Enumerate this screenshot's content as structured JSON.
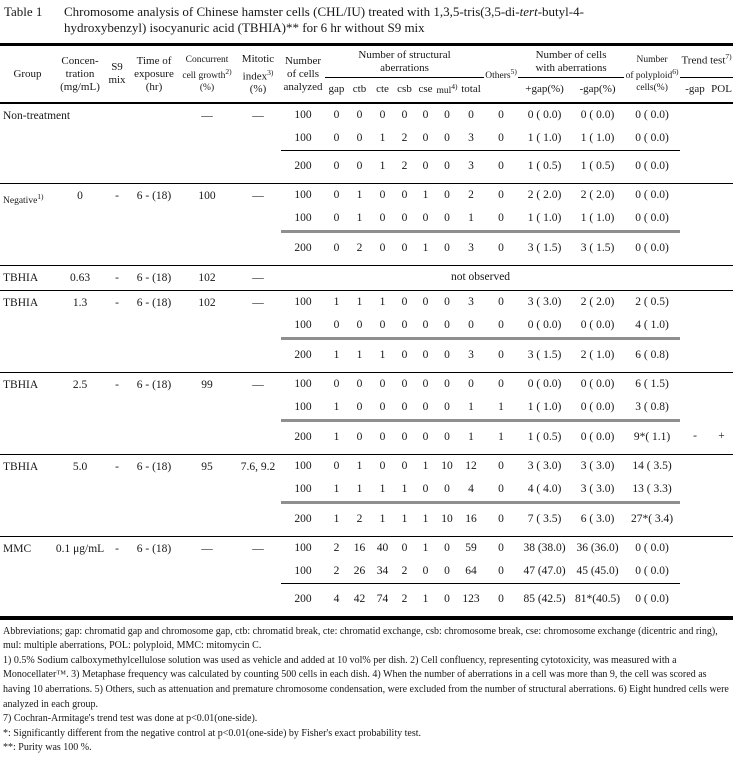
{
  "title": {
    "label": "Table 1",
    "line1_pre": "Chromosome analysis of Chinese hamster cells (CHL/IU) treated with 1,3,5-tris(3,5-di-",
    "line1_italic": "tert",
    "line1_post": "-butyl-4-",
    "line2": "hydroxybenzyl) isocyanuric acid (TBHIA)** for 6 hr without S9 mix"
  },
  "header": {
    "group": "Group",
    "concentration": {
      "l1": "Concen-",
      "l2": "tration",
      "l3": "(mg/mL)"
    },
    "s9": {
      "l1": "S9",
      "l2": "mix"
    },
    "time": {
      "l1": "Time of",
      "l2": "exposure",
      "l3": "(hr)"
    },
    "growth": {
      "l1": "Concurrent",
      "l2": "cell growth",
      "sup": "2)",
      "l3": "(%)"
    },
    "mitotic": {
      "l1": "Mitotic",
      "l2": "index",
      "sup": "3)",
      "l3": "(%)"
    },
    "analyzed": {
      "l1": "Number",
      "l2": "of cells",
      "l3": "analyzed"
    },
    "structural": {
      "l1": "Number of structural",
      "l2": "aberrations"
    },
    "sub": {
      "gap": "gap",
      "ctb": "ctb",
      "cte": "cte",
      "csb": "csb",
      "cse": "cse",
      "mul": "mul",
      "mul_sup": "4)",
      "total": "total"
    },
    "others": {
      "label": "Others",
      "sup": "5)"
    },
    "with_aberrations": {
      "l1": "Number of cells",
      "l2": "with aberrations",
      "plus": "+gap(%)",
      "minus": "-gap(%)"
    },
    "polyploid": {
      "l1": "Number",
      "l2": "of polyploid",
      "sup": "6)",
      "l3": "cells(%)"
    },
    "trend": {
      "label": "Trend test",
      "sup": "7)",
      "sub1": "-gap",
      "sub2": "POL"
    }
  },
  "table": {
    "groups": [
      {
        "name": "Non-treatment",
        "name_sup": "",
        "concentration": "",
        "s9": "",
        "time": "",
        "growth": "—",
        "mitotic": "—",
        "rows": [
          {
            "analyzed": "100",
            "gap": "0",
            "ctb": "0",
            "cte": "0",
            "csb": "0",
            "cse": "0",
            "mul": "0",
            "total": "0",
            "others": "0",
            "plus_gap": "0 ( 0.0)",
            "minus_gap": "0 ( 0.0)",
            "polyploid": "0 ( 0.0)"
          },
          {
            "analyzed": "100",
            "gap": "0",
            "ctb": "0",
            "cte": "1",
            "csb": "2",
            "cse": "0",
            "mul": "0",
            "total": "3",
            "others": "0",
            "plus_gap": "1 ( 1.0)",
            "minus_gap": "1 ( 1.0)",
            "polyploid": "0 ( 0.0)"
          }
        ],
        "subtotal": {
          "analyzed": "200",
          "gap": "0",
          "ctb": "0",
          "cte": "1",
          "csb": "2",
          "cse": "0",
          "mul": "0",
          "total": "3",
          "others": "0",
          "plus_gap": "1 ( 0.5)",
          "minus_gap": "1 ( 0.5)",
          "polyploid": "0 ( 0.0)",
          "trend_gap": "",
          "trend_pol": ""
        }
      },
      {
        "name": "Negative",
        "name_sup": "1)",
        "concentration": "0",
        "s9": "-",
        "time": "6 - (18)",
        "growth": "100",
        "mitotic": "—",
        "rows": [
          {
            "analyzed": "100",
            "gap": "0",
            "ctb": "1",
            "cte": "0",
            "csb": "0",
            "cse": "1",
            "mul": "0",
            "total": "2",
            "others": "0",
            "plus_gap": "2 ( 2.0)",
            "minus_gap": "2 ( 2.0)",
            "polyploid": "0 ( 0.0)"
          },
          {
            "analyzed": "100",
            "gap": "0",
            "ctb": "1",
            "cte": "0",
            "csb": "0",
            "cse": "0",
            "mul": "0",
            "total": "1",
            "others": "0",
            "plus_gap": "1 ( 1.0)",
            "minus_gap": "1 ( 1.0)",
            "polyploid": "0 ( 0.0)"
          }
        ],
        "subtotal": {
          "analyzed": "200",
          "gap": "0",
          "ctb": "2",
          "cte": "0",
          "csb": "0",
          "cse": "1",
          "mul": "0",
          "total": "3",
          "others": "0",
          "plus_gap": "3 ( 1.5)",
          "minus_gap": "3 ( 1.5)",
          "polyploid": "0 ( 0.0)",
          "trend_gap": "",
          "trend_pol": ""
        }
      },
      {
        "name": "TBHIA",
        "name_sup": "",
        "concentration": "0.63",
        "s9": "-",
        "time": "6 - (18)",
        "growth": "102",
        "mitotic": "—",
        "not_observed": "not observed"
      },
      {
        "name": "TBHIA",
        "name_sup": "",
        "concentration": "1.3",
        "s9": "-",
        "time": "6 - (18)",
        "growth": "102",
        "mitotic": "—",
        "rows": [
          {
            "analyzed": "100",
            "gap": "1",
            "ctb": "1",
            "cte": "1",
            "csb": "0",
            "cse": "0",
            "mul": "0",
            "total": "3",
            "others": "0",
            "plus_gap": "3 ( 3.0)",
            "minus_gap": "2 ( 2.0)",
            "polyploid": "2 ( 0.5)"
          },
          {
            "analyzed": "100",
            "gap": "0",
            "ctb": "0",
            "cte": "0",
            "csb": "0",
            "cse": "0",
            "mul": "0",
            "total": "0",
            "others": "0",
            "plus_gap": "0 ( 0.0)",
            "minus_gap": "0 ( 0.0)",
            "polyploid": "4 ( 1.0)"
          }
        ],
        "subtotal": {
          "analyzed": "200",
          "gap": "1",
          "ctb": "1",
          "cte": "1",
          "csb": "0",
          "cse": "0",
          "mul": "0",
          "total": "3",
          "others": "0",
          "plus_gap": "3 ( 1.5)",
          "minus_gap": "2 ( 1.0)",
          "polyploid": "6 ( 0.8)",
          "trend_gap": "",
          "trend_pol": ""
        }
      },
      {
        "name": "TBHIA",
        "name_sup": "",
        "concentration": "2.5",
        "s9": "-",
        "time": "6 - (18)",
        "growth": "99",
        "mitotic": "—",
        "rows": [
          {
            "analyzed": "100",
            "gap": "0",
            "ctb": "0",
            "cte": "0",
            "csb": "0",
            "cse": "0",
            "mul": "0",
            "total": "0",
            "others": "0",
            "plus_gap": "0 ( 0.0)",
            "minus_gap": "0 ( 0.0)",
            "polyploid": "6 ( 1.5)"
          },
          {
            "analyzed": "100",
            "gap": "1",
            "ctb": "0",
            "cte": "0",
            "csb": "0",
            "cse": "0",
            "mul": "0",
            "total": "1",
            "others": "1",
            "plus_gap": "1 ( 1.0)",
            "minus_gap": "0 ( 0.0)",
            "polyploid": "3 ( 0.8)"
          }
        ],
        "subtotal": {
          "analyzed": "200",
          "gap": "1",
          "ctb": "0",
          "cte": "0",
          "csb": "0",
          "cse": "0",
          "mul": "0",
          "total": "1",
          "others": "1",
          "plus_gap": "1 ( 0.5)",
          "minus_gap": "0 ( 0.0)",
          "polyploid": "9*( 1.1)",
          "trend_gap": "-",
          "trend_pol": "+"
        }
      },
      {
        "name": "TBHIA",
        "name_sup": "",
        "concentration": "5.0",
        "s9": "-",
        "time": "6 - (18)",
        "growth": "95",
        "mitotic": "7.6, 9.2",
        "rows": [
          {
            "analyzed": "100",
            "gap": "0",
            "ctb": "1",
            "cte": "0",
            "csb": "0",
            "cse": "1",
            "mul": "10",
            "total": "12",
            "others": "0",
            "plus_gap": "3 ( 3.0)",
            "minus_gap": "3 ( 3.0)",
            "polyploid": "14 ( 3.5)"
          },
          {
            "analyzed": "100",
            "gap": "1",
            "ctb": "1",
            "cte": "1",
            "csb": "1",
            "cse": "0",
            "mul": "0",
            "total": "4",
            "others": "0",
            "plus_gap": "4 ( 4.0)",
            "minus_gap": "3 ( 3.0)",
            "polyploid": "13 ( 3.3)"
          }
        ],
        "subtotal": {
          "analyzed": "200",
          "gap": "1",
          "ctb": "2",
          "cte": "1",
          "csb": "1",
          "cse": "1",
          "mul": "10",
          "total": "16",
          "others": "0",
          "plus_gap": "7 ( 3.5)",
          "minus_gap": "6 ( 3.0)",
          "polyploid": "27*( 3.4)",
          "trend_gap": "",
          "trend_pol": ""
        }
      },
      {
        "name": "MMC",
        "name_sup": "",
        "concentration": "0.1 μg/mL",
        "s9": "-",
        "time": "6 - (18)",
        "growth": "—",
        "mitotic": "—",
        "rows": [
          {
            "analyzed": "100",
            "gap": "2",
            "ctb": "16",
            "cte": "40",
            "csb": "0",
            "cse": "1",
            "mul": "0",
            "total": "59",
            "others": "0",
            "plus_gap": "38 (38.0)",
            "minus_gap": "36 (36.0)",
            "polyploid": "0 ( 0.0)"
          },
          {
            "analyzed": "100",
            "gap": "2",
            "ctb": "26",
            "cte": "34",
            "csb": "2",
            "cse": "0",
            "mul": "0",
            "total": "64",
            "others": "0",
            "plus_gap": "47 (47.0)",
            "minus_gap": "45 (45.0)",
            "polyploid": "0 ( 0.0)"
          }
        ],
        "subtotal": {
          "analyzed": "200",
          "gap": "4",
          "ctb": "42",
          "cte": "74",
          "csb": "2",
          "cse": "1",
          "mul": "0",
          "total": "123",
          "others": "0",
          "plus_gap": "85 (42.5)",
          "minus_gap": "81*(40.5)",
          "polyploid": "0 ( 0.0)",
          "trend_gap": "",
          "trend_pol": ""
        }
      }
    ]
  },
  "footnotes": [
    "Abbreviations; gap: chromatid gap and chromosome gap, ctb: chromatid break, cte: chromatid exchange, csb: chromosome break, cse: chromosome exchange (dicentric and ring), mul: multiple aberrations, POL: polyploid, MMC: mitomycin C.",
    "1) 0.5% Sodium calboxymethylcellulose solution was used as vehicle and added at 10 vol% per dish. 2) Cell confluency, representing cytotoxicity, was measured with a Monocellater™. 3) Metaphase frequency was calculated by counting 500 cells in each dish. 4) When the number of aberrations in a cell was more than 9, the cell was scored as having 10 aberrations. 5) Others, such as attenuation and premature chromosome condensation, were excluded from the number of structural aberrations. 6) Eight hundred cells were analyzed in each group.",
    "7) Cochran-Armitage's trend test was done at p<0.01(one-side).",
    "*: Significantly different from the negative control at p<0.01(one-side) by Fisher's exact probability test.",
    "**: Purity was 100 %."
  ]
}
